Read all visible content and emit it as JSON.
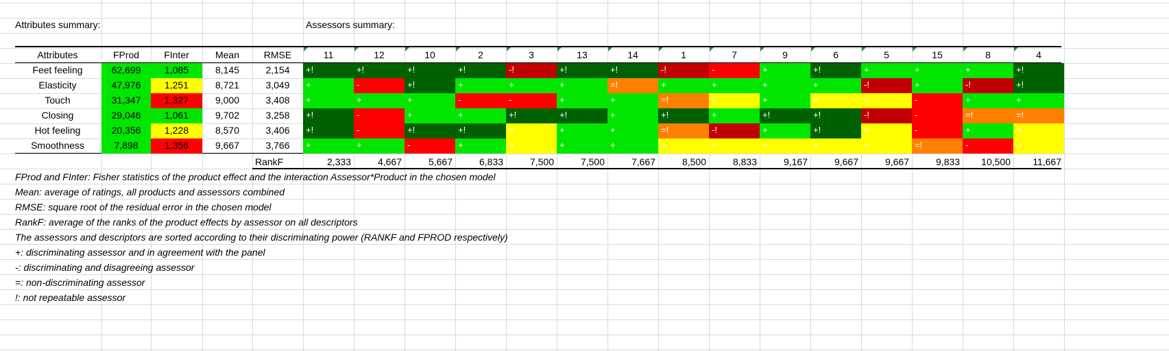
{
  "sheet": {
    "attributes_title": "Attributes summary:",
    "assessors_title": "Assessors summary:"
  },
  "headers": {
    "attributes": "Attributes",
    "fprod": "FProd",
    "finter": "FInter",
    "mean": "Mean",
    "rmse": "RMSE"
  },
  "assessors": [
    "11",
    "12",
    "10",
    "2",
    "3",
    "13",
    "14",
    "1",
    "7",
    "9",
    "6",
    "5",
    "15",
    "8",
    "4"
  ],
  "rows": [
    {
      "name": "Feet feeling",
      "fprod": "62,699",
      "finter": "1,085",
      "mean": "8,145",
      "rmse": "2,154",
      "cells": [
        "+!",
        "+!",
        "+!",
        "+!",
        "-!",
        "+!",
        "+!",
        "-!",
        "-",
        "+",
        "+!",
        "+",
        "+",
        "+",
        "+!"
      ],
      "colors": [
        "dg",
        "dg",
        "dg",
        "dg",
        "dr",
        "dg",
        "dg",
        "dr",
        "r",
        "g",
        "dg",
        "g",
        "g",
        "g",
        "dg"
      ]
    },
    {
      "name": "Elasticity",
      "fprod": "47,976",
      "finter": "1,251",
      "mean": "8,721",
      "rmse": "3,049",
      "cells": [
        "+",
        "-",
        "+!",
        "+",
        "+",
        "+",
        "=!",
        "+",
        "+",
        "+",
        "+",
        "-!",
        "+",
        "-!",
        "+!"
      ],
      "colors": [
        "g",
        "r",
        "dg",
        "g",
        "g",
        "g",
        "o",
        "g",
        "g",
        "g",
        "g",
        "dr",
        "g",
        "dr",
        "dg"
      ]
    },
    {
      "name": "Touch",
      "fprod": "31,347",
      "finter": "1,327",
      "mean": "9,000",
      "rmse": "3,408",
      "cells": [
        "+",
        "+",
        "+",
        "-",
        "-",
        "+",
        "+",
        "=!",
        "=",
        "+",
        "=",
        "=",
        "-",
        "+",
        "+"
      ],
      "colors": [
        "g",
        "g",
        "g",
        "r",
        "r",
        "g",
        "g",
        "o",
        "y",
        "g",
        "y",
        "y",
        "r",
        "g",
        "g"
      ]
    },
    {
      "name": "Closing",
      "fprod": "29,046",
      "finter": "1,061",
      "mean": "9,702",
      "rmse": "3,258",
      "cells": [
        "+!",
        "-",
        "+",
        "+",
        "+!",
        "+!",
        "+",
        "+!",
        "+",
        "+!",
        "+!",
        "-!",
        "-",
        "=!",
        "=!"
      ],
      "colors": [
        "dg",
        "r",
        "g",
        "g",
        "dg",
        "dg",
        "g",
        "dg",
        "g",
        "dg",
        "dg",
        "dr",
        "r",
        "o",
        "o"
      ]
    },
    {
      "name": "Hot feeling",
      "fprod": "20,356",
      "finter": "1,228",
      "mean": "8,570",
      "rmse": "3,406",
      "cells": [
        "+!",
        "-",
        "+!",
        "+!",
        "=",
        "+",
        "+",
        "=!",
        "-!",
        "+",
        "+!",
        "=",
        "-",
        "+",
        "="
      ],
      "colors": [
        "dg",
        "r",
        "dg",
        "dg",
        "y",
        "g",
        "g",
        "o",
        "dr",
        "g",
        "dg",
        "y",
        "r",
        "g",
        "y"
      ]
    },
    {
      "name": "Smoothness",
      "fprod": "7,898",
      "finter": "1,356",
      "mean": "9,667",
      "rmse": "3,766",
      "cells": [
        "+",
        "+",
        "-",
        "+",
        "=",
        "+",
        "+",
        "=",
        "=",
        "=",
        "=",
        "=",
        "=!",
        "-",
        "="
      ],
      "colors": [
        "g",
        "g",
        "r",
        "g",
        "y",
        "g",
        "g",
        "y",
        "y",
        "y",
        "y",
        "y",
        "o",
        "r",
        "y"
      ]
    }
  ],
  "finter_colors": [
    "g",
    "y",
    "r",
    "g",
    "y",
    "r"
  ],
  "rankf_label": "RankF",
  "rankf": [
    "2,333",
    "4,667",
    "5,667",
    "6,833",
    "7,500",
    "7,500",
    "7,667",
    "8,500",
    "8,833",
    "9,167",
    "9,667",
    "9,667",
    "9,833",
    "10,500",
    "11,667"
  ],
  "notes": [
    "FProd and FInter: Fisher statistics of the product effect and the interaction Assessor*Product in the chosen model",
    "Mean: average of ratings, all products and assessors combined",
    "RMSE: square root of the residual error in the chosen model",
    "RankF: average of the ranks of the product effects by assessor on all descriptors",
    "The assessors and descriptors are sorted according to their discriminating power (RANKF and FPROD respectively)",
    "+: discriminating assessor and in agreement with the panel",
    "-: discriminating and disagreeing assessor",
    "=: non-discriminating assessor",
    "!: not repeatable assessor"
  ],
  "palette": {
    "g": "#00e600",
    "dg": "#006100",
    "r": "#ff0000",
    "dr": "#c00000",
    "o": "#ff8000",
    "y": "#ffff00"
  }
}
